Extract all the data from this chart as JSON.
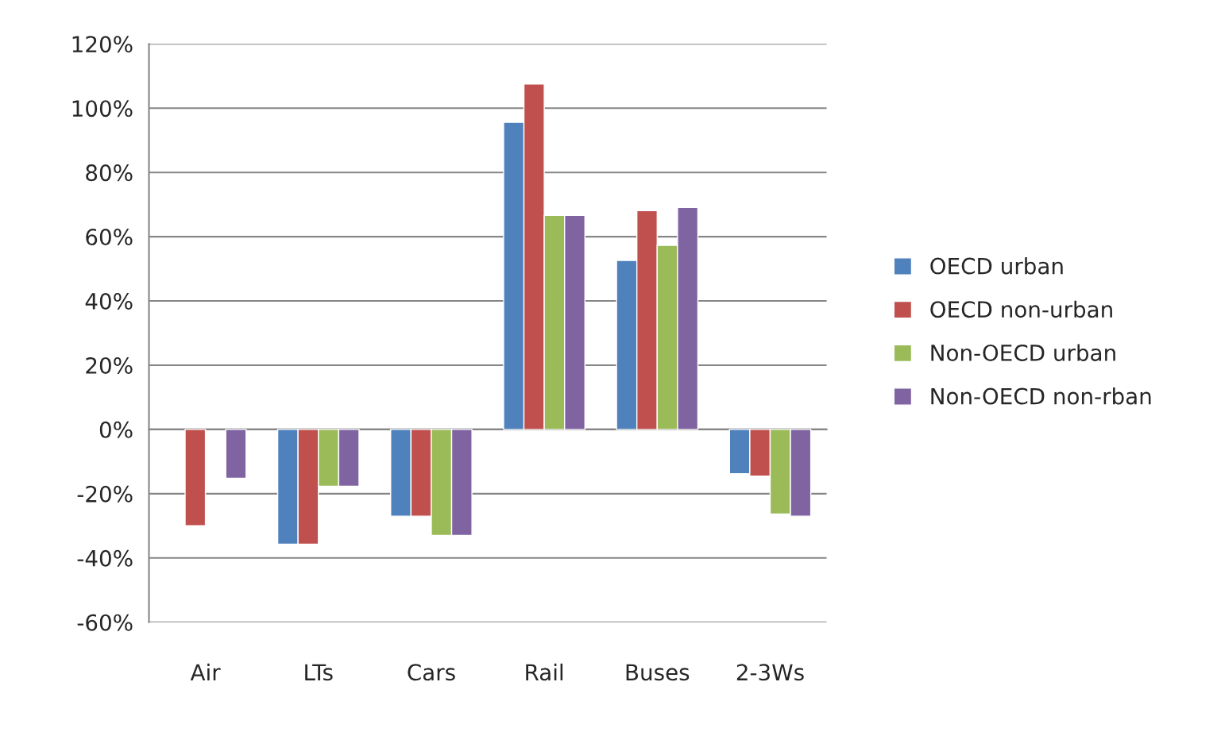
{
  "chart_data": {
    "type": "bar",
    "categories": [
      "Air",
      "LTs",
      "Cars",
      "Rail",
      "Buses",
      "2-3Ws"
    ],
    "series": [
      {
        "name": "OECD urban",
        "color": "#4f81bd",
        "values": [
          null,
          -35.7,
          -27,
          95.6,
          52.6,
          -13.8
        ]
      },
      {
        "name": "OECD non-urban",
        "color": "#c0504d",
        "values": [
          -30,
          -35.7,
          -27,
          107.5,
          68.1,
          -14.5
        ]
      },
      {
        "name": "Non-OECD urban",
        "color": "#9bbb59",
        "values": [
          null,
          -17.7,
          -33,
          66.6,
          57.3,
          -26.3
        ]
      },
      {
        "name": "Non-OECD non-rban",
        "color": "#8064a2",
        "values": [
          -15.2,
          -17.7,
          -33,
          66.6,
          69.1,
          -27
        ]
      }
    ],
    "ylim": [
      -60,
      120
    ],
    "yticks": [
      {
        "value": -60,
        "label": "-60%"
      },
      {
        "value": -40,
        "label": "-40%"
      },
      {
        "value": -20,
        "label": "-20%"
      },
      {
        "value": 0,
        "label": "0%"
      },
      {
        "value": 20,
        "label": "20%"
      },
      {
        "value": 40,
        "label": "40%"
      },
      {
        "value": 60,
        "label": "60%"
      },
      {
        "value": 80,
        "label": "80%"
      },
      {
        "value": 100,
        "label": "100%"
      },
      {
        "value": 120,
        "label": "120%"
      }
    ],
    "grid": "y",
    "legend": "right"
  }
}
